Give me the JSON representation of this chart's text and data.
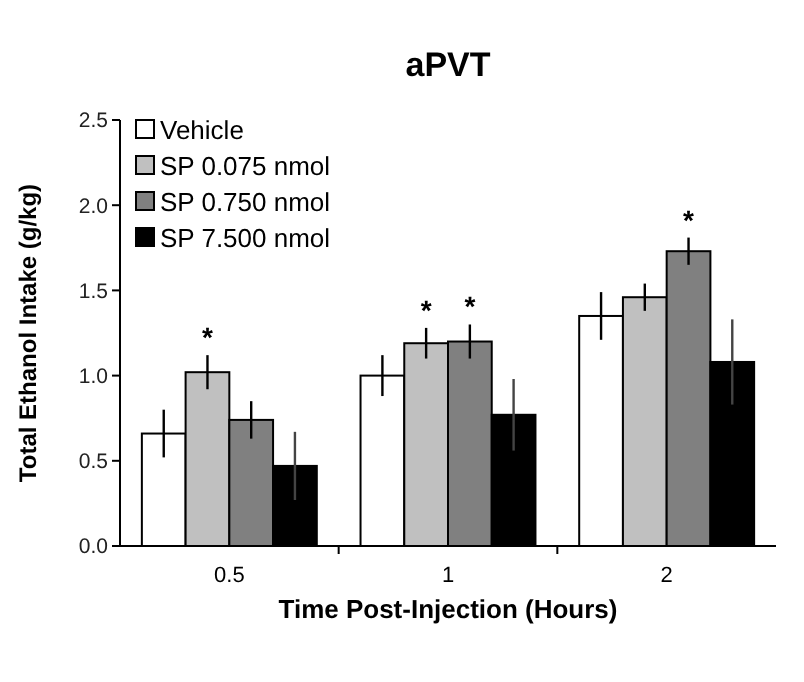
{
  "chart_data": {
    "type": "bar",
    "title": "aPVT",
    "xlabel": "Time Post-Injection (Hours)",
    "ylabel": "Total Ethanol Intake (g/kg)",
    "categories": [
      "0.5",
      "1",
      "2"
    ],
    "series": [
      {
        "name": "Vehicle",
        "color": "#ffffff",
        "values": [
          0.66,
          1.0,
          1.35
        ],
        "errors": [
          0.14,
          0.12,
          0.14
        ]
      },
      {
        "name": "SP 0.075 nmol",
        "color": "#c0c0c0",
        "values": [
          1.02,
          1.19,
          1.46
        ],
        "errors": [
          0.1,
          0.09,
          0.08
        ]
      },
      {
        "name": "SP 0.750 nmol",
        "color": "#808080",
        "values": [
          0.74,
          1.2,
          1.73
        ],
        "errors": [
          0.11,
          0.1,
          0.08
        ]
      },
      {
        "name": "SP 7.500 nmol",
        "color": "#000000",
        "values": [
          0.47,
          0.77,
          1.08
        ],
        "errors": [
          0.2,
          0.21,
          0.25
        ]
      }
    ],
    "ylim": [
      0,
      2.5
    ],
    "yticks": [
      {
        "value": 0,
        "label": "0.0"
      },
      {
        "value": 0.5,
        "label": "0.5"
      },
      {
        "value": 1,
        "label": "1.0"
      },
      {
        "value": 1.5,
        "label": "1.5"
      },
      {
        "value": 2,
        "label": "2.0"
      },
      {
        "value": 2.5,
        "label": "2.5"
      }
    ],
    "legend": "top left",
    "annotations": [
      {
        "text": "*",
        "x": "0.5",
        "y": 1.02
      },
      {
        "text": "*",
        "x": "1",
        "y": 1.19
      },
      {
        "text": "*",
        "x": "1",
        "y": 1.2
      },
      {
        "text": "*",
        "x": "2",
        "y": 1.73
      }
    ]
  }
}
